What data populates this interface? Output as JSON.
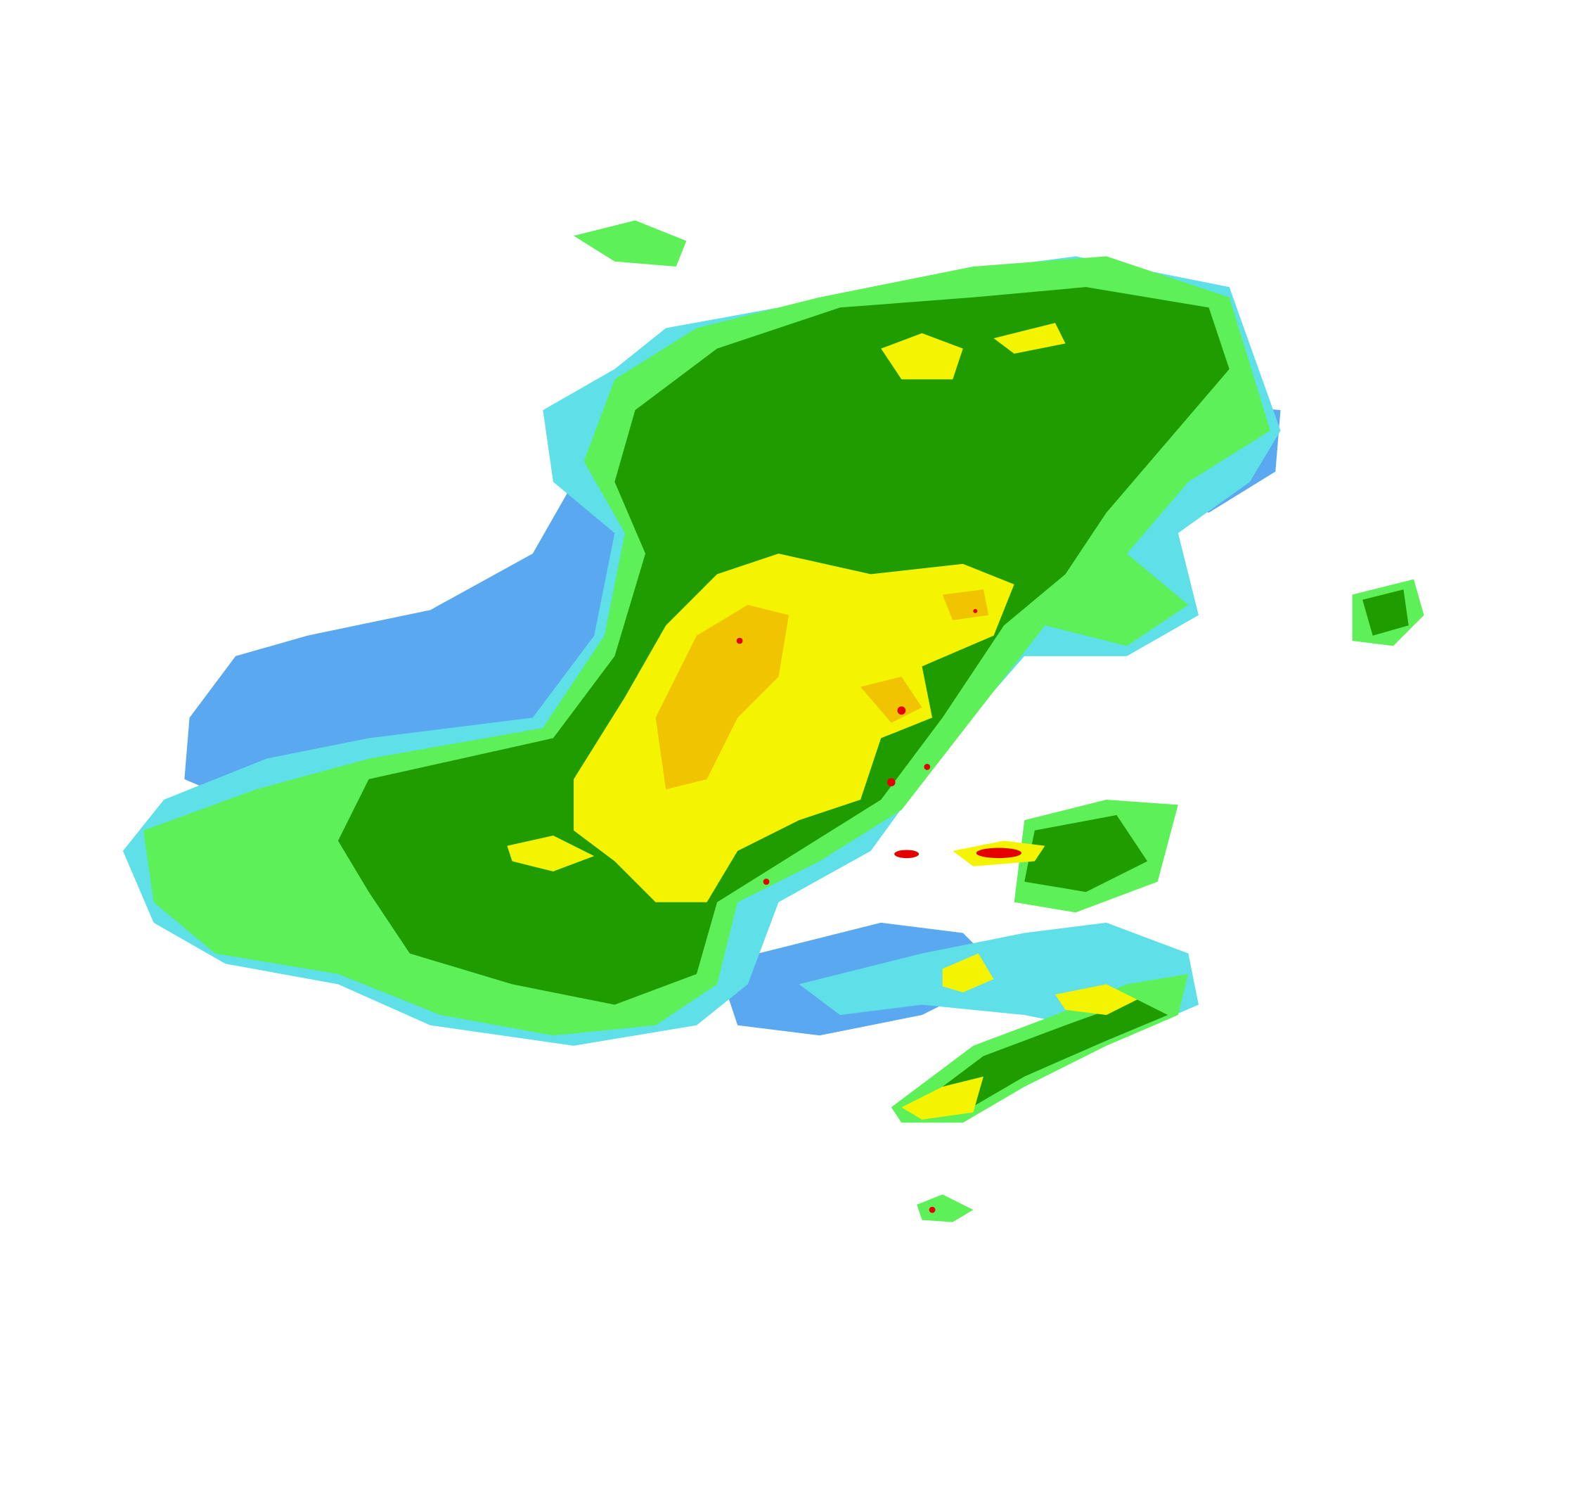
{
  "radar": {
    "palette": {
      "very_light": "#5aa8f0",
      "light": "#5fdfe8",
      "light_moderate": "#5ef058",
      "moderate": "#1e9c00",
      "heavy": "#f4f400",
      "very_heavy": "#f0c400",
      "intense": "#e40000"
    }
  }
}
